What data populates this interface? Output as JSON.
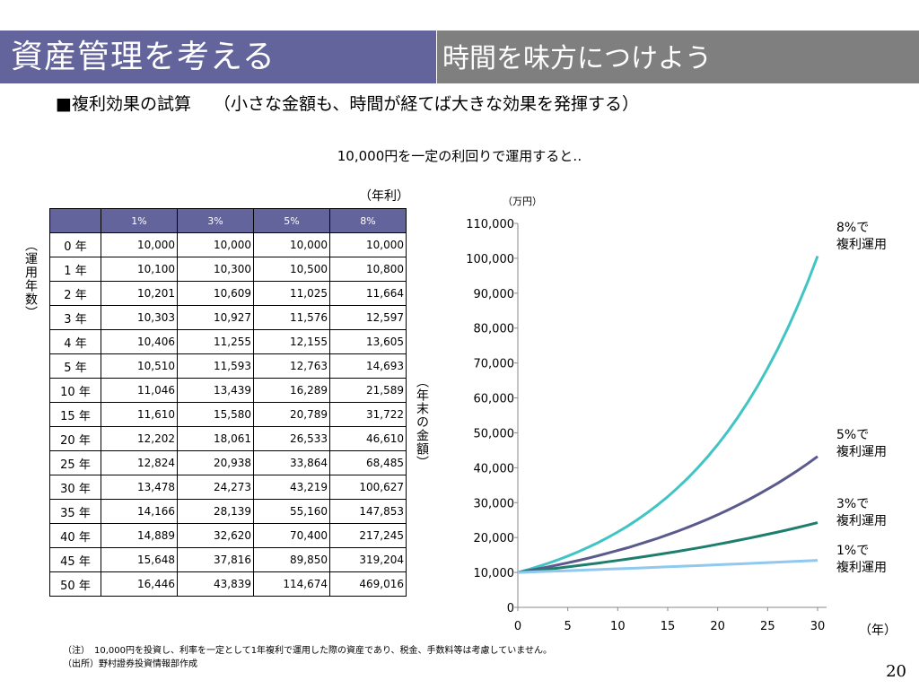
{
  "header": {
    "title": "資産管理を考える",
    "subtitle": "時間を味方につけよう"
  },
  "subhead": "■複利効果の試算　 （小さな金額も、時間が経てば大きな効果を発揮する）",
  "chart_title": "10,000円を一定の利回りで運用すると‥",
  "labels": {
    "rate_unit": "（年利）",
    "amount_unit": "（万円）",
    "years_axis": "（運用年数）",
    "amount_axis": "（年末の金額）",
    "x_unit": "（年）"
  },
  "table": {
    "columns": [
      "1%",
      "3%",
      "5%",
      "8%"
    ],
    "rows": [
      {
        "year": "0 年",
        "values": [
          "10,000",
          "10,000",
          "10,000",
          "10,000"
        ]
      },
      {
        "year": "1 年",
        "values": [
          "10,100",
          "10,300",
          "10,500",
          "10,800"
        ]
      },
      {
        "year": "2 年",
        "values": [
          "10,201",
          "10,609",
          "11,025",
          "11,664"
        ]
      },
      {
        "year": "3 年",
        "values": [
          "10,303",
          "10,927",
          "11,576",
          "12,597"
        ]
      },
      {
        "year": "4 年",
        "values": [
          "10,406",
          "11,255",
          "12,155",
          "13,605"
        ]
      },
      {
        "year": "5 年",
        "values": [
          "10,510",
          "11,593",
          "12,763",
          "14,693"
        ]
      },
      {
        "year": "10 年",
        "values": [
          "11,046",
          "13,439",
          "16,289",
          "21,589"
        ]
      },
      {
        "year": "15 年",
        "values": [
          "11,610",
          "15,580",
          "20,789",
          "31,722"
        ]
      },
      {
        "year": "20 年",
        "values": [
          "12,202",
          "18,061",
          "26,533",
          "46,610"
        ]
      },
      {
        "year": "25 年",
        "values": [
          "12,824",
          "20,938",
          "33,864",
          "68,485"
        ]
      },
      {
        "year": "30 年",
        "values": [
          "13,478",
          "24,273",
          "43,219",
          "100,627"
        ]
      },
      {
        "year": "35 年",
        "values": [
          "14,166",
          "28,139",
          "55,160",
          "147,853"
        ]
      },
      {
        "year": "40 年",
        "values": [
          "14,889",
          "32,620",
          "70,400",
          "217,245"
        ]
      },
      {
        "year": "45 年",
        "values": [
          "15,648",
          "37,816",
          "89,850",
          "319,204"
        ]
      },
      {
        "year": "50 年",
        "values": [
          "16,446",
          "43,839",
          "114,674",
          "469,016"
        ]
      }
    ]
  },
  "chart_data": {
    "type": "line",
    "x": [
      0,
      5,
      10,
      15,
      20,
      25,
      30
    ],
    "xlim": [
      0,
      30
    ],
    "ylim": [
      0,
      110000
    ],
    "xticks": [
      "0",
      "5",
      "10",
      "15",
      "20",
      "25",
      "30"
    ],
    "yticks": [
      "0",
      "10,000",
      "20,000",
      "30,000",
      "40,000",
      "50,000",
      "60,000",
      "70,000",
      "80,000",
      "90,000",
      "100,000",
      "110,000"
    ],
    "series": [
      {
        "name": "8%で\n複利運用",
        "rate": 0.08,
        "color": "#40c4c4",
        "values": [
          10000,
          14693,
          21589,
          31722,
          46610,
          68485,
          100627
        ]
      },
      {
        "name": "5%で\n複利運用",
        "rate": 0.05,
        "color": "#5a5a8c",
        "values": [
          10000,
          12763,
          16289,
          20789,
          26533,
          33864,
          43219
        ]
      },
      {
        "name": "3%で\n複利運用",
        "rate": 0.03,
        "color": "#1e7e6e",
        "values": [
          10000,
          11593,
          13439,
          15580,
          18061,
          20938,
          24273
        ]
      },
      {
        "name": "1%で\n複利運用",
        "rate": 0.01,
        "color": "#90c8f0",
        "values": [
          10000,
          10510,
          11046,
          11610,
          12202,
          12824,
          13478
        ]
      }
    ],
    "grid": false,
    "legend": "right"
  },
  "notes": [
    "（注）　10,000円を投資し、利率を一定として1年複利で運用した際の資産であり、税金、手数料等は考慮していません。",
    "（出所）野村證券投資情報部作成"
  ],
  "page_number": "20"
}
